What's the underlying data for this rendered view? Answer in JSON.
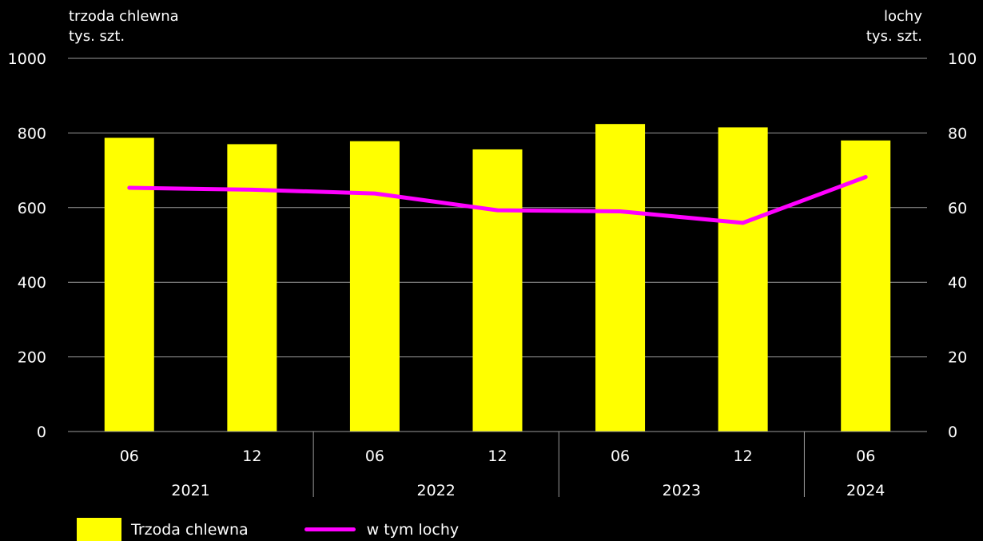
{
  "colors": {
    "background": "#000000",
    "bars": "#ffff00",
    "line": "#ff00ff",
    "grid": "#9a9a9a",
    "text": "#ffffff"
  },
  "left_axis": {
    "label_line1": "trzoda chlewna",
    "label_line2": "tys. szt."
  },
  "right_axis": {
    "label_line1": "lochy",
    "label_line2": "tys. szt."
  },
  "legend": {
    "bars_label": "Trzoda chlewna",
    "line_label": "w tym lochy"
  },
  "chart_data": {
    "type": "bar",
    "categories": [
      "06",
      "12",
      "06",
      "12",
      "06",
      "12",
      "06"
    ],
    "year_groups": [
      {
        "label": "2021",
        "count": 2
      },
      {
        "label": "2022",
        "count": 2
      },
      {
        "label": "2023",
        "count": 2
      },
      {
        "label": "2024",
        "count": 1
      }
    ],
    "series": [
      {
        "name": "Trzoda chlewna",
        "type": "bar",
        "axis": "left",
        "values": [
          787,
          770,
          778,
          756,
          824,
          815,
          780
        ]
      },
      {
        "name": "w tym lochy",
        "type": "line",
        "axis": "right",
        "values": [
          65.3,
          64.8,
          63.8,
          59.3,
          59.0,
          55.9,
          68.2
        ]
      }
    ],
    "left_ylim": [
      0,
      1000
    ],
    "left_ticks": [
      0,
      200,
      400,
      600,
      800,
      1000
    ],
    "right_ylim": [
      0,
      100
    ],
    "right_ticks": [
      0,
      20,
      40,
      60,
      80,
      100
    ],
    "grid": true,
    "legend_position": "bottom-left"
  }
}
